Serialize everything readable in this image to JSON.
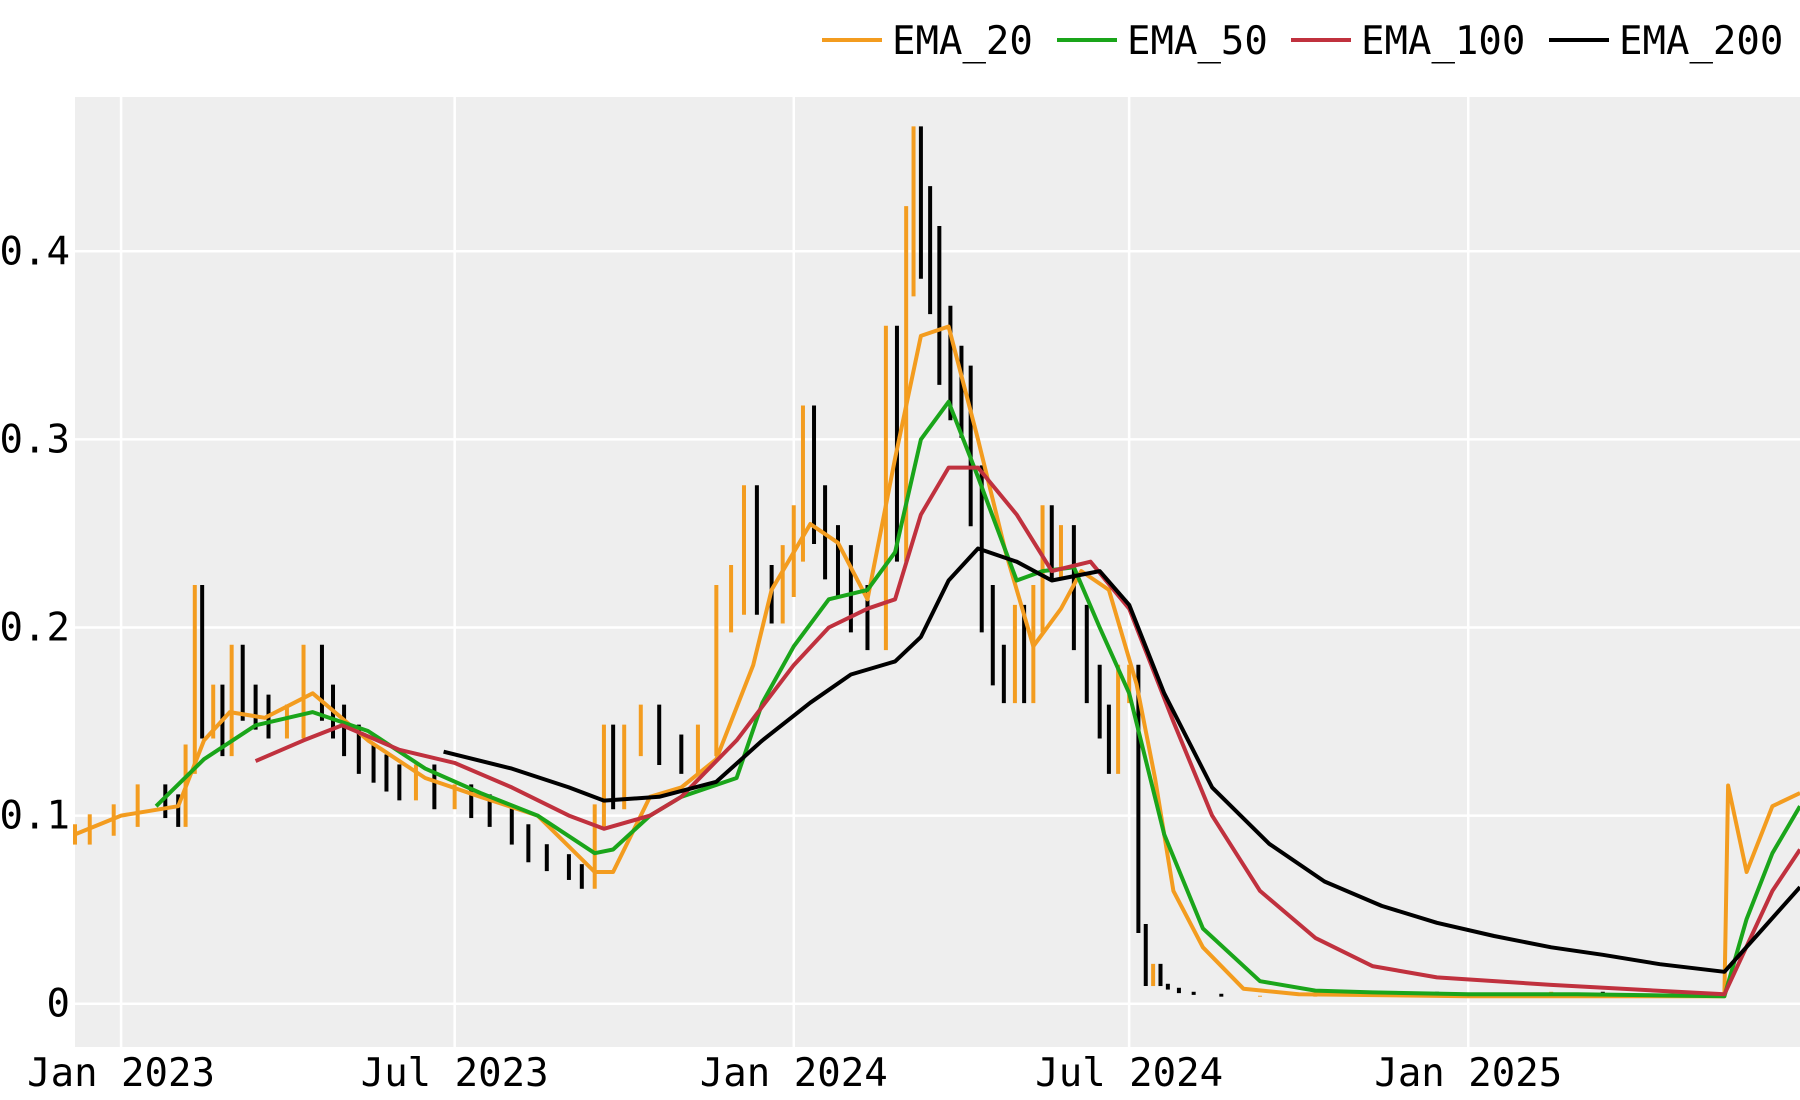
{
  "chart_data": {
    "type": "line",
    "title": "",
    "xlabel": "",
    "ylabel": "",
    "x_tick_labels": [
      "Jan 2023",
      "Jul 2023",
      "Jan 2024",
      "Jul 2024",
      "Jan 2025"
    ],
    "x_tick_dates": [
      "2023-01-01",
      "2023-07-01",
      "2024-01-01",
      "2024-07-01",
      "2025-01-01"
    ],
    "y_tick_labels": [
      "0",
      "0.1",
      "0.2",
      "0.3",
      "0.4"
    ],
    "y_tick_values": [
      0,
      0.1,
      0.2,
      0.3,
      0.4
    ],
    "xlim": [
      "2022-12-07",
      "2025-06-30"
    ],
    "ylim": [
      -0.023,
      0.482
    ],
    "grid": true,
    "legend_position": "top-right",
    "colors": {
      "plot_background": "#eeeeee",
      "grid": "#ffffff",
      "price_bars": "#000000",
      "price_bars_up": "#f39c1f",
      "EMA_20": "#f39c1f",
      "EMA_50": "#1aa51a",
      "EMA_100": "#c0313e",
      "EMA_200": "#000000"
    },
    "price": {
      "dates": [
        "2022-12-07",
        "2022-12-15",
        "2022-12-28",
        "2023-01-10",
        "2023-01-25",
        "2023-02-01",
        "2023-02-05",
        "2023-02-10",
        "2023-02-14",
        "2023-02-20",
        "2023-02-25",
        "2023-03-02",
        "2023-03-08",
        "2023-03-15",
        "2023-03-22",
        "2023-04-01",
        "2023-04-10",
        "2023-04-20",
        "2023-04-26",
        "2023-05-02",
        "2023-05-10",
        "2023-05-18",
        "2023-05-25",
        "2023-06-01",
        "2023-06-10",
        "2023-06-20",
        "2023-07-01",
        "2023-07-10",
        "2023-07-20",
        "2023-08-01",
        "2023-08-10",
        "2023-08-20",
        "2023-09-01",
        "2023-09-08",
        "2023-09-15",
        "2023-09-20",
        "2023-09-25",
        "2023-10-01",
        "2023-10-10",
        "2023-10-20",
        "2023-11-01",
        "2023-11-10",
        "2023-11-20",
        "2023-11-28",
        "2023-12-05",
        "2023-12-12",
        "2023-12-20",
        "2023-12-26",
        "2024-01-01",
        "2024-01-06",
        "2024-01-12",
        "2024-01-18",
        "2024-01-25",
        "2024-02-01",
        "2024-02-10",
        "2024-02-20",
        "2024-02-26",
        "2024-03-02",
        "2024-03-06",
        "2024-03-10",
        "2024-03-15",
        "2024-03-20",
        "2024-03-26",
        "2024-04-01",
        "2024-04-06",
        "2024-04-12",
        "2024-04-18",
        "2024-04-24",
        "2024-04-30",
        "2024-05-05",
        "2024-05-10",
        "2024-05-15",
        "2024-05-20",
        "2024-05-25",
        "2024-06-01",
        "2024-06-08",
        "2024-06-15",
        "2024-06-20",
        "2024-06-25",
        "2024-07-01",
        "2024-07-06",
        "2024-07-10",
        "2024-07-14",
        "2024-07-18",
        "2024-07-22",
        "2024-07-28",
        "2024-08-05",
        "2024-08-20",
        "2024-09-10",
        "2024-10-10",
        "2024-11-10",
        "2024-11-25",
        "2024-12-15",
        "2025-01-15",
        "2025-02-15",
        "2025-03-15",
        "2025-04-15",
        "2025-05-20"
      ],
      "close": [
        0.09,
        0.095,
        0.1,
        0.11,
        0.105,
        0.1,
        0.13,
        0.21,
        0.15,
        0.16,
        0.14,
        0.18,
        0.16,
        0.155,
        0.15,
        0.15,
        0.18,
        0.16,
        0.15,
        0.14,
        0.13,
        0.125,
        0.12,
        0.115,
        0.12,
        0.11,
        0.11,
        0.105,
        0.1,
        0.09,
        0.08,
        0.075,
        0.07,
        0.065,
        0.1,
        0.14,
        0.11,
        0.14,
        0.15,
        0.135,
        0.13,
        0.14,
        0.21,
        0.22,
        0.26,
        0.22,
        0.215,
        0.23,
        0.25,
        0.3,
        0.26,
        0.24,
        0.23,
        0.21,
        0.2,
        0.34,
        0.25,
        0.4,
        0.44,
        0.41,
        0.39,
        0.35,
        0.33,
        0.32,
        0.27,
        0.21,
        0.18,
        0.17,
        0.2,
        0.17,
        0.21,
        0.25,
        0.24,
        0.24,
        0.2,
        0.17,
        0.15,
        0.13,
        0.17,
        0.17,
        0.04,
        0.01,
        0.02,
        0.01,
        0.008,
        0.006,
        0.005,
        0.004,
        0.004,
        0.004,
        0.004,
        0.006,
        0.005,
        0.005,
        0.006,
        0.005,
        0.004,
        0.004
      ]
    },
    "series": [
      {
        "name": "EMA_20",
        "dates": [
          "2022-12-07",
          "2023-01-01",
          "2023-02-01",
          "2023-02-15",
          "2023-03-01",
          "2023-03-20",
          "2023-04-15",
          "2023-05-15",
          "2023-06-15",
          "2023-07-15",
          "2023-08-15",
          "2023-09-15",
          "2023-09-25",
          "2023-10-15",
          "2023-11-01",
          "2023-11-20",
          "2023-12-10",
          "2023-12-20",
          "2024-01-01",
          "2024-01-10",
          "2024-01-25",
          "2024-02-10",
          "2024-02-25",
          "2024-03-10",
          "2024-03-25",
          "2024-04-10",
          "2024-04-25",
          "2024-05-10",
          "2024-05-25",
          "2024-06-05",
          "2024-06-20",
          "2024-07-05",
          "2024-07-15",
          "2024-07-25",
          "2024-08-10",
          "2024-09-01",
          "2024-10-01",
          "2025-01-01",
          "2025-03-01",
          "2025-05-20",
          "2025-05-22",
          "2025-06-01",
          "2025-06-15",
          "2025-06-30"
        ],
        "values": [
          0.09,
          0.1,
          0.105,
          0.14,
          0.155,
          0.152,
          0.165,
          0.14,
          0.12,
          0.11,
          0.1,
          0.07,
          0.07,
          0.11,
          0.115,
          0.13,
          0.18,
          0.22,
          0.24,
          0.255,
          0.245,
          0.215,
          0.29,
          0.355,
          0.36,
          0.3,
          0.24,
          0.19,
          0.21,
          0.23,
          0.22,
          0.17,
          0.12,
          0.06,
          0.03,
          0.008,
          0.005,
          0.004,
          0.004,
          0.004,
          0.116,
          0.07,
          0.105,
          0.112
        ]
      },
      {
        "name": "EMA_50",
        "dates": [
          "2023-01-20",
          "2023-02-15",
          "2023-03-15",
          "2023-04-15",
          "2023-05-15",
          "2023-06-15",
          "2023-07-15",
          "2023-08-15",
          "2023-09-15",
          "2023-09-25",
          "2023-10-15",
          "2023-11-01",
          "2023-12-01",
          "2023-12-15",
          "2024-01-01",
          "2024-01-20",
          "2024-02-10",
          "2024-02-25",
          "2024-03-10",
          "2024-03-25",
          "2024-04-10",
          "2024-05-01",
          "2024-05-15",
          "2024-06-01",
          "2024-06-15",
          "2024-07-01",
          "2024-07-20",
          "2024-08-10",
          "2024-09-10",
          "2024-10-10",
          "2024-11-10",
          "2025-01-01",
          "2025-03-01",
          "2025-05-20",
          "2025-06-01",
          "2025-06-15",
          "2025-06-30"
        ],
        "values": [
          0.105,
          0.13,
          0.148,
          0.155,
          0.145,
          0.125,
          0.112,
          0.1,
          0.08,
          0.082,
          0.1,
          0.11,
          0.12,
          0.16,
          0.19,
          0.215,
          0.22,
          0.24,
          0.3,
          0.32,
          0.28,
          0.225,
          0.23,
          0.232,
          0.2,
          0.165,
          0.09,
          0.04,
          0.012,
          0.007,
          0.006,
          0.005,
          0.005,
          0.004,
          0.045,
          0.08,
          0.105
        ]
      },
      {
        "name": "EMA_100",
        "dates": [
          "2023-03-15",
          "2023-04-10",
          "2023-05-01",
          "2023-06-01",
          "2023-07-01",
          "2023-08-01",
          "2023-09-01",
          "2023-09-20",
          "2023-10-15",
          "2023-11-01",
          "2023-12-01",
          "2024-01-01",
          "2024-01-20",
          "2024-02-10",
          "2024-02-25",
          "2024-03-10",
          "2024-03-25",
          "2024-04-10",
          "2024-05-01",
          "2024-05-20",
          "2024-06-10",
          "2024-07-01",
          "2024-07-25",
          "2024-08-15",
          "2024-09-10",
          "2024-10-10",
          "2024-11-10",
          "2024-12-15",
          "2025-02-15",
          "2025-05-20",
          "2025-06-15",
          "2025-06-30"
        ],
        "values": [
          0.129,
          0.14,
          0.148,
          0.135,
          0.128,
          0.115,
          0.1,
          0.093,
          0.1,
          0.11,
          0.14,
          0.18,
          0.2,
          0.21,
          0.215,
          0.26,
          0.285,
          0.285,
          0.26,
          0.23,
          0.235,
          0.21,
          0.15,
          0.1,
          0.06,
          0.035,
          0.02,
          0.014,
          0.01,
          0.005,
          0.06,
          0.082
        ]
      },
      {
        "name": "EMA_200",
        "dates": [
          "2023-06-25",
          "2023-08-01",
          "2023-09-01",
          "2023-09-20",
          "2023-10-20",
          "2023-11-20",
          "2023-12-15",
          "2024-01-10",
          "2024-02-01",
          "2024-02-25",
          "2024-03-10",
          "2024-03-25",
          "2024-04-10",
          "2024-05-01",
          "2024-05-20",
          "2024-06-15",
          "2024-07-01",
          "2024-07-20",
          "2024-08-15",
          "2024-09-15",
          "2024-10-15",
          "2024-11-15",
          "2024-12-15",
          "2025-01-15",
          "2025-02-15",
          "2025-03-15",
          "2025-04-15",
          "2025-05-20",
          "2025-06-10",
          "2025-06-30"
        ],
        "values": [
          0.134,
          0.125,
          0.115,
          0.108,
          0.11,
          0.118,
          0.14,
          0.16,
          0.175,
          0.182,
          0.195,
          0.225,
          0.242,
          0.235,
          0.225,
          0.23,
          0.212,
          0.165,
          0.115,
          0.085,
          0.065,
          0.052,
          0.043,
          0.036,
          0.03,
          0.026,
          0.021,
          0.017,
          0.04,
          0.062
        ]
      }
    ]
  }
}
